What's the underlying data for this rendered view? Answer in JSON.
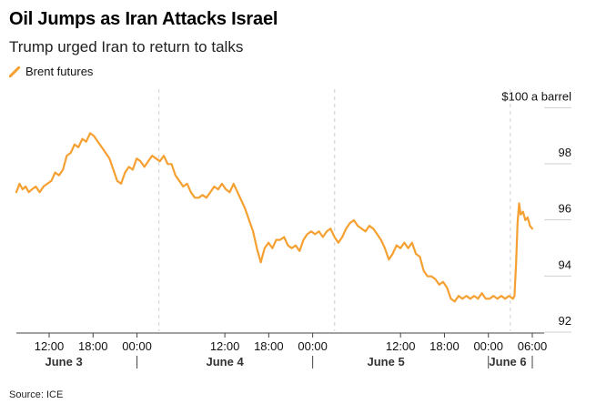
{
  "header": {
    "title": "Oil Jumps as Iran Attacks Israel",
    "subtitle": "Trump urged Iran to return to talks"
  },
  "legend": {
    "label": "Brent futures"
  },
  "source": "Source: ICE",
  "colors": {
    "series": "#f5a031",
    "grid": "#cfcfcf",
    "axis": "#444444"
  },
  "chart_data": {
    "type": "line",
    "series": [
      {
        "name": "Brent futures",
        "points": [
          [
            0.0,
            96.6
          ],
          [
            0.4,
            96.9
          ],
          [
            0.8,
            96.7
          ],
          [
            1.2,
            96.8
          ],
          [
            1.6,
            96.6
          ],
          [
            2.0,
            96.7
          ],
          [
            2.5,
            96.8
          ],
          [
            3.0,
            96.6
          ],
          [
            3.5,
            96.8
          ],
          [
            4.0,
            96.9
          ],
          [
            4.5,
            97.0
          ],
          [
            5.0,
            97.3
          ],
          [
            5.5,
            97.2
          ],
          [
            6.0,
            97.4
          ],
          [
            6.5,
            97.9
          ],
          [
            7.0,
            98.0
          ],
          [
            7.5,
            98.3
          ],
          [
            8.0,
            98.2
          ],
          [
            8.5,
            98.5
          ],
          [
            9.0,
            98.4
          ],
          [
            9.5,
            98.7
          ],
          [
            10.0,
            98.6
          ],
          [
            10.5,
            98.4
          ],
          [
            11.0,
            98.2
          ],
          [
            11.5,
            98.0
          ],
          [
            12.0,
            97.8
          ],
          [
            12.5,
            97.4
          ],
          [
            13.0,
            97.0
          ],
          [
            13.5,
            96.9
          ],
          [
            14.0,
            97.3
          ],
          [
            14.5,
            97.5
          ],
          [
            15.0,
            97.4
          ],
          [
            15.5,
            97.8
          ],
          [
            16.0,
            97.7
          ],
          [
            16.5,
            97.5
          ],
          [
            17.0,
            97.7
          ],
          [
            17.5,
            97.9
          ],
          [
            18.0,
            97.8
          ],
          [
            18.5,
            97.7
          ],
          [
            19.0,
            97.9
          ],
          [
            19.5,
            97.6
          ],
          [
            20.0,
            97.6
          ],
          [
            20.5,
            97.2
          ],
          [
            21.0,
            97.0
          ],
          [
            21.5,
            96.8
          ],
          [
            22.0,
            96.9
          ],
          [
            22.5,
            96.6
          ],
          [
            23.0,
            96.4
          ],
          [
            23.5,
            96.4
          ],
          [
            24.0,
            96.5
          ],
          [
            24.5,
            96.4
          ],
          [
            25.0,
            96.6
          ],
          [
            25.5,
            96.8
          ],
          [
            26.0,
            96.7
          ],
          [
            26.5,
            96.9
          ],
          [
            27.0,
            96.7
          ],
          [
            27.5,
            96.6
          ],
          [
            28.0,
            96.9
          ],
          [
            28.5,
            96.6
          ],
          [
            29.0,
            96.3
          ],
          [
            29.5,
            96.0
          ],
          [
            30.0,
            95.6
          ],
          [
            30.5,
            95.2
          ],
          [
            31.0,
            94.6
          ],
          [
            31.5,
            94.1
          ],
          [
            32.0,
            94.6
          ],
          [
            32.5,
            94.8
          ],
          [
            33.0,
            94.6
          ],
          [
            33.5,
            94.9
          ],
          [
            34.0,
            94.9
          ],
          [
            34.5,
            95.0
          ],
          [
            35.0,
            94.7
          ],
          [
            35.5,
            94.6
          ],
          [
            36.0,
            94.7
          ],
          [
            36.5,
            94.5
          ],
          [
            37.0,
            94.9
          ],
          [
            37.5,
            95.1
          ],
          [
            38.0,
            95.2
          ],
          [
            38.5,
            95.1
          ],
          [
            39.0,
            95.2
          ],
          [
            39.5,
            95.0
          ],
          [
            40.0,
            95.2
          ],
          [
            40.5,
            95.3
          ],
          [
            41.0,
            95.0
          ],
          [
            41.5,
            94.8
          ],
          [
            42.0,
            95.0
          ],
          [
            42.5,
            95.3
          ],
          [
            43.0,
            95.5
          ],
          [
            43.5,
            95.6
          ],
          [
            44.0,
            95.4
          ],
          [
            44.5,
            95.3
          ],
          [
            45.0,
            95.2
          ],
          [
            45.5,
            95.4
          ],
          [
            46.0,
            95.3
          ],
          [
            46.5,
            95.1
          ],
          [
            47.0,
            94.9
          ],
          [
            47.5,
            94.6
          ],
          [
            48.0,
            94.2
          ],
          [
            48.5,
            94.4
          ],
          [
            49.0,
            94.7
          ],
          [
            49.5,
            94.6
          ],
          [
            50.0,
            94.8
          ],
          [
            50.5,
            94.6
          ],
          [
            51.0,
            94.8
          ],
          [
            51.5,
            94.4
          ],
          [
            52.0,
            94.3
          ],
          [
            52.5,
            93.8
          ],
          [
            53.0,
            93.6
          ],
          [
            53.5,
            93.6
          ],
          [
            54.0,
            93.5
          ],
          [
            54.5,
            93.3
          ],
          [
            55.0,
            93.4
          ],
          [
            55.5,
            93.2
          ],
          [
            56.0,
            92.8
          ],
          [
            56.5,
            92.7
          ],
          [
            57.0,
            92.9
          ],
          [
            57.5,
            92.8
          ],
          [
            58.0,
            92.9
          ],
          [
            58.5,
            92.8
          ],
          [
            59.0,
            92.9
          ],
          [
            59.5,
            92.8
          ],
          [
            60.0,
            93.0
          ],
          [
            60.5,
            92.8
          ],
          [
            61.0,
            92.8
          ],
          [
            61.5,
            92.9
          ],
          [
            62.0,
            92.8
          ],
          [
            62.5,
            92.9
          ],
          [
            63.0,
            92.8
          ],
          [
            63.5,
            92.9
          ],
          [
            64.0,
            92.8
          ],
          [
            64.2,
            92.9
          ],
          [
            64.4,
            94.0
          ],
          [
            64.6,
            95.5
          ],
          [
            64.8,
            96.2
          ],
          [
            65.0,
            95.8
          ],
          [
            65.3,
            95.9
          ],
          [
            65.6,
            95.6
          ],
          [
            65.9,
            95.7
          ],
          [
            66.2,
            95.4
          ],
          [
            66.5,
            95.3
          ]
        ]
      }
    ],
    "x_unit": "hours after 06:00 on June 3",
    "xlim": [
      -1,
      66.5
    ],
    "ylim": [
      91.5,
      100
    ],
    "yticks": [
      92,
      94,
      96,
      98
    ],
    "yticklabels": [
      "92",
      "94",
      "96",
      "98"
    ],
    "y_top_label": "$100 a barrel",
    "xticks": [
      {
        "x": 6,
        "label": "12:00"
      },
      {
        "x": 12,
        "label": "18:00"
      },
      {
        "x": 18,
        "label": "00:00"
      },
      {
        "x": 30,
        "label": "12:00"
      },
      {
        "x": 36,
        "label": "18:00"
      },
      {
        "x": 42,
        "label": "00:00"
      },
      {
        "x": 54,
        "label": "12:00"
      },
      {
        "x": 60,
        "label": "18:00"
      },
      {
        "x": 66,
        "label": "00:00"
      },
      {
        "x": 72,
        "label": "06:00"
      }
    ],
    "day_labels": [
      {
        "x": 8,
        "label": "June 3"
      },
      {
        "x": 30,
        "label": "June 4"
      },
      {
        "x": 52,
        "label": "June 5"
      },
      {
        "x": 64,
        "label": "June 6"
      }
    ],
    "day_separators": [
      18,
      42,
      66
    ],
    "event_lines": [
      21,
      45,
      69
    ]
  }
}
